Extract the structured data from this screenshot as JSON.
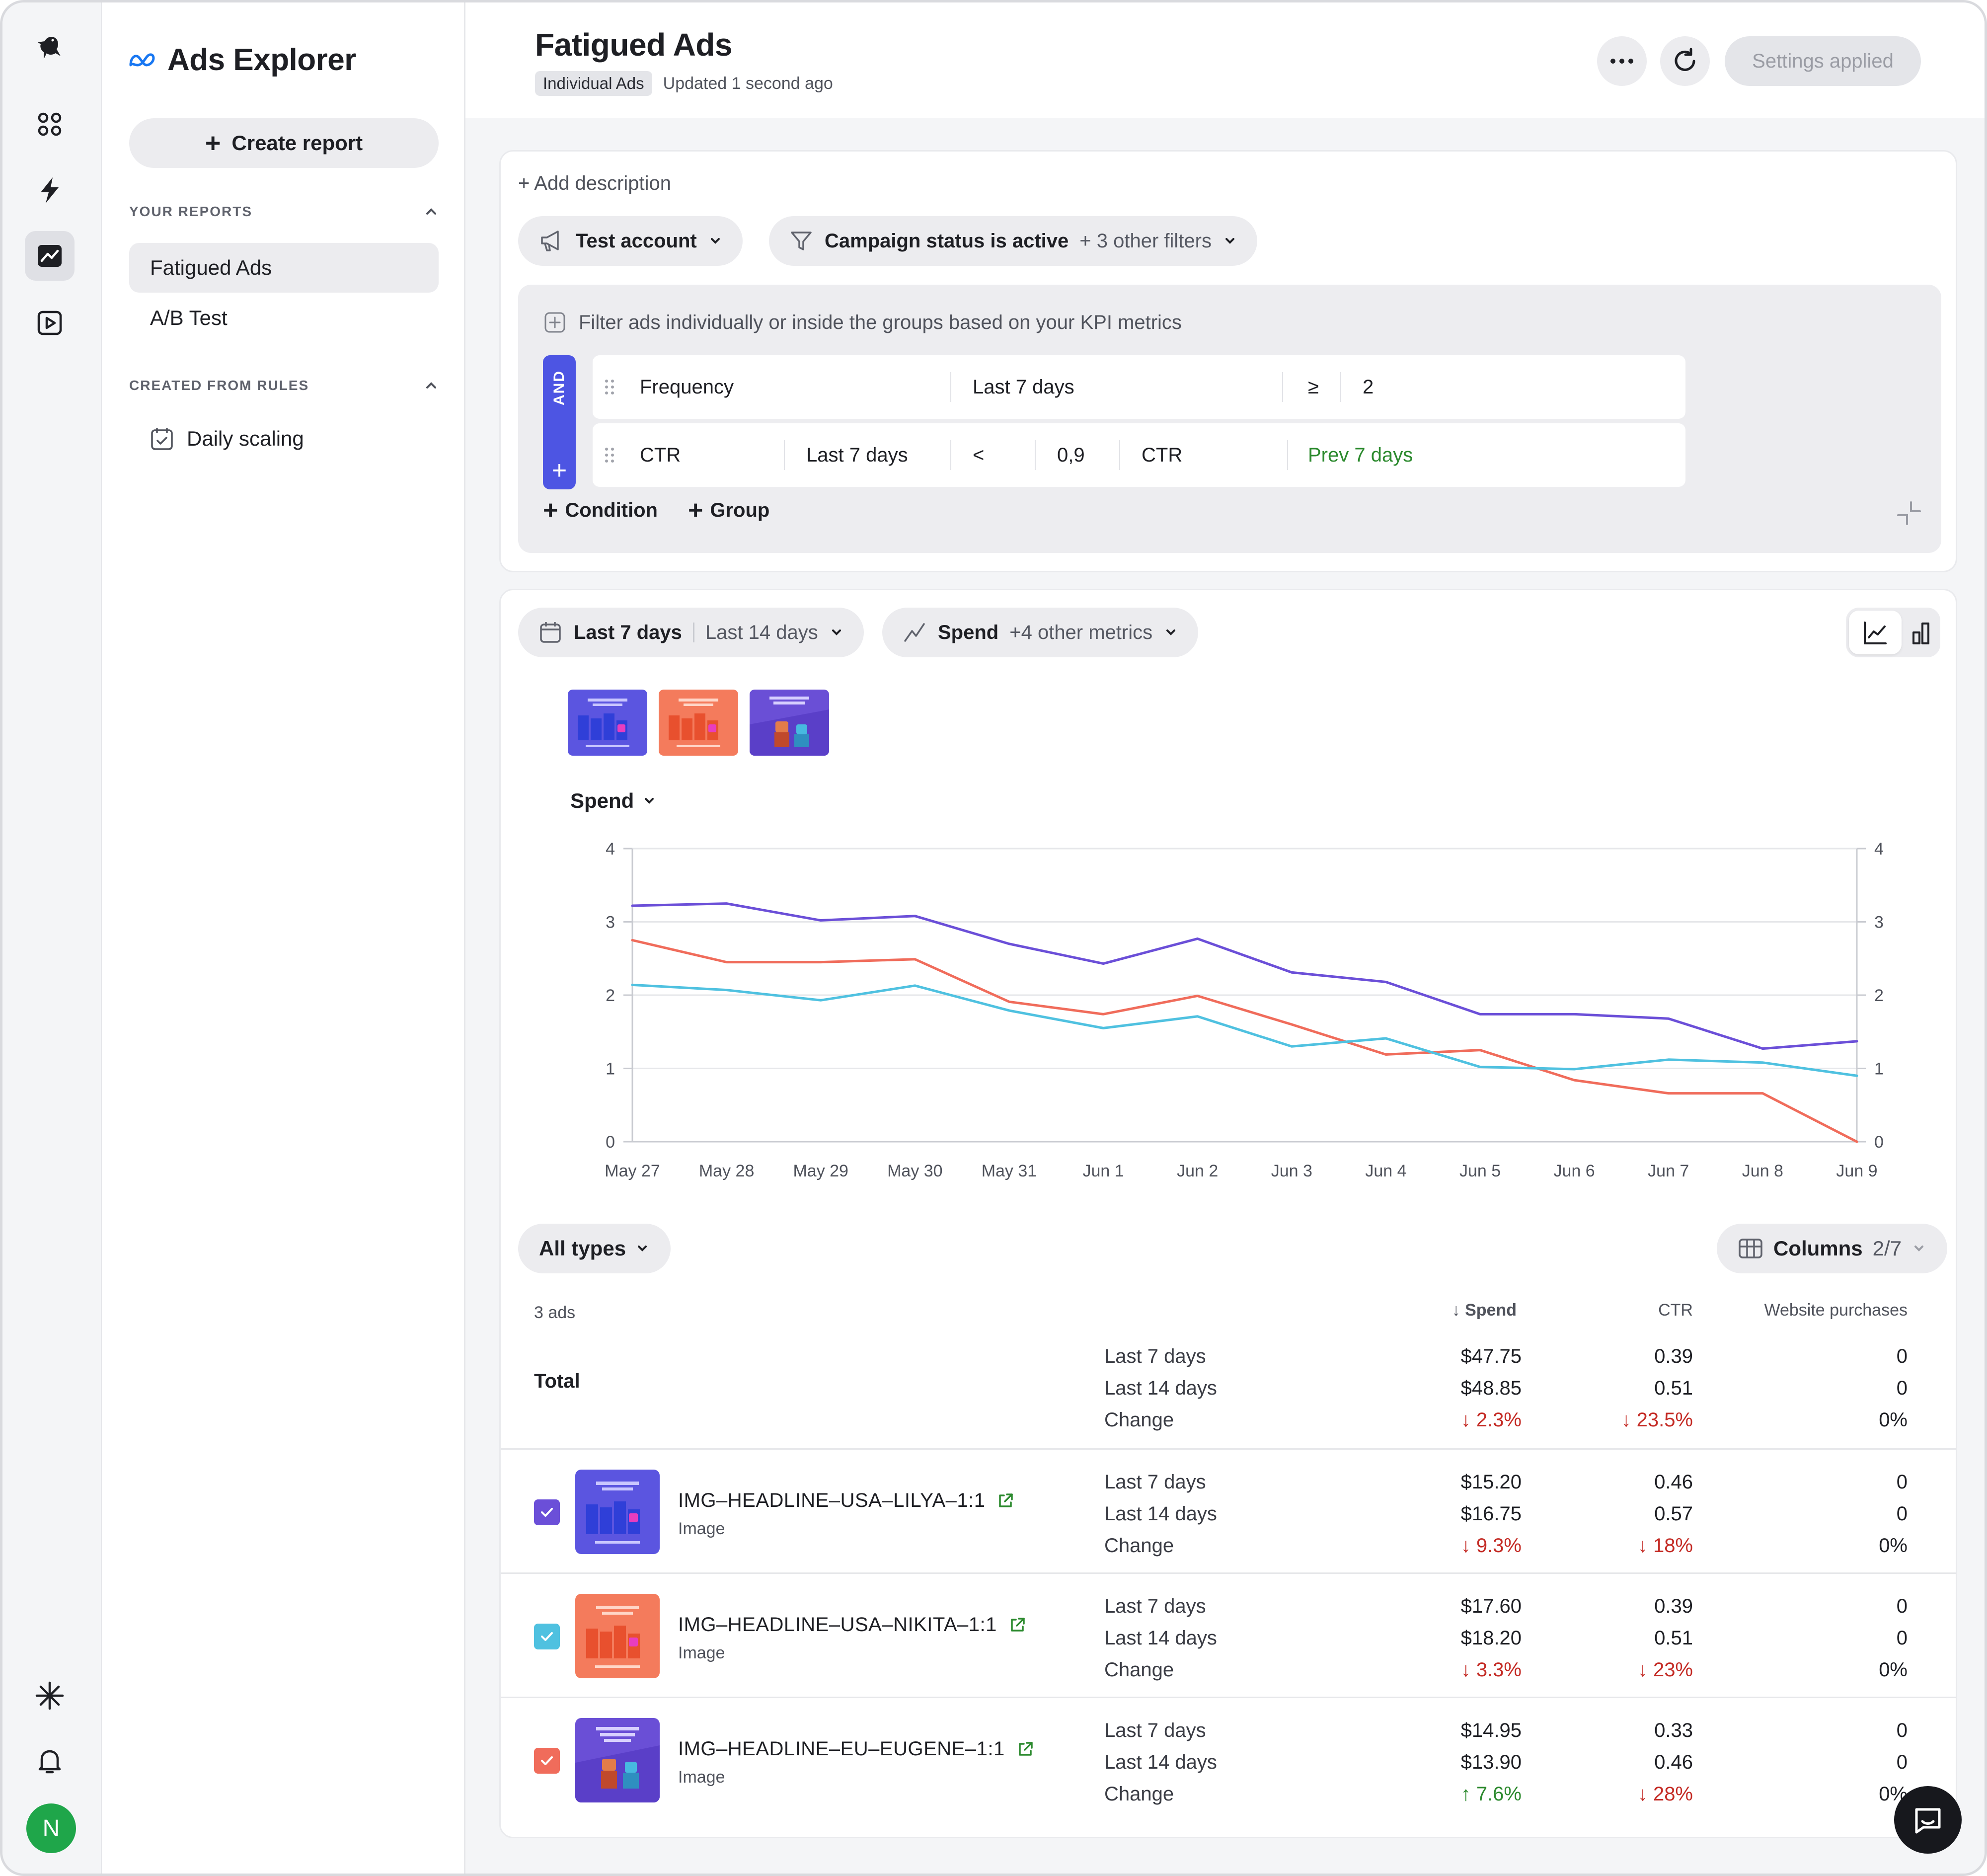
{
  "app": {
    "title": "Ads Explorer"
  },
  "sidebar": {
    "create_label": "Create report",
    "your_reports_label": "YOUR REPORTS",
    "reports": [
      "Fatigued Ads",
      "A/B Test"
    ],
    "created_from_rules_label": "CREATED FROM RULES",
    "rules": [
      "Daily scaling"
    ]
  },
  "user": {
    "initial": "N"
  },
  "header": {
    "title": "Fatigued Ads",
    "tag": "Individual Ads",
    "updated": "Updated 1 second ago",
    "settings_label": "Settings applied"
  },
  "filters": {
    "add_description": "+ Add description",
    "account": "Test account",
    "campaign_filter": "Campaign status is active",
    "other_filters": "+ 3 other filters",
    "hint": "Filter ads individually or inside the groups based on your KPI metrics",
    "and_label": "AND",
    "condition1": {
      "metric": "Frequency",
      "period": "Last 7 days",
      "operator": "≥",
      "value": "2"
    },
    "condition2": {
      "metric": "CTR",
      "period": "Last 7 days",
      "operator": "<",
      "value": "0,9",
      "compare_metric": "CTR",
      "compare_period": "Prev 7 days"
    },
    "add_condition": "Condition",
    "add_group": "Group"
  },
  "chart_controls": {
    "period_primary": "Last 7 days",
    "period_secondary": "Last 14 days",
    "metric": "Spend",
    "other_metrics": "+4 other metrics",
    "metric_select": "Spend"
  },
  "chart_data": {
    "type": "line",
    "x": [
      "May 27",
      "May 28",
      "May 29",
      "May 30",
      "May 31",
      "Jun 1",
      "Jun 2",
      "Jun 3",
      "Jun 4",
      "Jun 5",
      "Jun 6",
      "Jun 7",
      "Jun 8",
      "Jun 9"
    ],
    "ylim": [
      0,
      4
    ],
    "yticks": [
      0,
      1,
      2,
      3,
      4
    ],
    "grid": true,
    "series": [
      {
        "color": "#6b4fd8",
        "values": [
          3.22,
          3.25,
          3.02,
          3.08,
          2.7,
          2.43,
          2.77,
          2.31,
          2.18,
          1.74,
          1.74,
          1.68,
          1.27,
          1.37
        ]
      },
      {
        "color": "#f06c5b",
        "values": [
          2.75,
          2.45,
          2.45,
          2.49,
          1.91,
          1.74,
          1.99,
          1.6,
          1.19,
          1.25,
          0.84,
          0.66,
          0.66,
          0.0
        ]
      },
      {
        "color": "#4fc1e0",
        "values": [
          2.14,
          2.07,
          1.93,
          2.13,
          1.79,
          1.55,
          1.71,
          1.3,
          1.41,
          1.02,
          0.99,
          1.12,
          1.08,
          0.9
        ]
      }
    ]
  },
  "table": {
    "types_label": "All types",
    "columns_label": "Columns",
    "columns_count": "2/7",
    "ads_count": "3 ads",
    "headers": {
      "spend": "↓ Spend",
      "ctr": "CTR",
      "purchases": "Website purchases"
    },
    "periods": [
      "Last 7 days",
      "Last 14 days",
      "Change"
    ],
    "total": {
      "label": "Total",
      "spend": [
        "$47.75",
        "$48.85",
        "↓ 2.3%"
      ],
      "ctr": [
        "0.39",
        "0.51",
        "↓ 23.5%"
      ],
      "purchases": [
        "0",
        "0",
        "0%"
      ]
    },
    "rows": [
      {
        "name": "IMG–HEADLINE–USA–LILYA–1:1",
        "type": "Image",
        "check_color": "#6b4fd8",
        "spend": [
          "$15.20",
          "$16.75",
          "↓ 9.3%"
        ],
        "ctr": [
          "0.46",
          "0.57",
          "↓ 18%"
        ],
        "purchases": [
          "0",
          "0",
          "0%"
        ]
      },
      {
        "name": "IMG–HEADLINE–USA–NIKITA–1:1",
        "type": "Image",
        "check_color": "#4fc1e0",
        "spend": [
          "$17.60",
          "$18.20",
          "↓ 3.3%"
        ],
        "ctr": [
          "0.39",
          "0.51",
          "↓ 23%"
        ],
        "purchases": [
          "0",
          "0",
          "0%"
        ]
      },
      {
        "name": "IMG–HEADLINE–EU–EUGENE–1:1",
        "type": "Image",
        "check_color": "#f06c5b",
        "spend": [
          "$14.95",
          "$13.90",
          "↑ 7.6%"
        ],
        "ctr": [
          "0.33",
          "0.46",
          "↓ 28%"
        ],
        "purchases": [
          "0",
          "0",
          "0%"
        ]
      }
    ]
  }
}
